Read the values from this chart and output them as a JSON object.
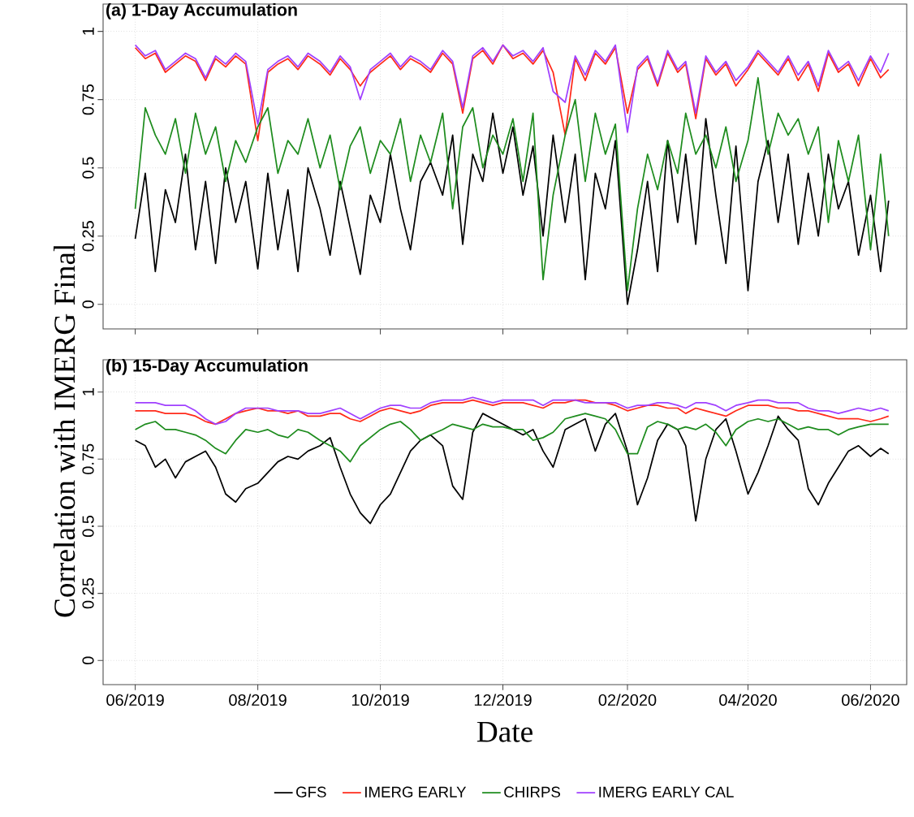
{
  "chart_data": [
    {
      "type": "line",
      "title": "(a) 1-Day Accumulation",
      "ylabel": "Correlation with IMERG Final",
      "x": [
        "2019-06-01",
        "2019-06-06",
        "2019-06-11",
        "2019-06-16",
        "2019-06-21",
        "2019-06-26",
        "2019-07-01",
        "2019-07-06",
        "2019-07-11",
        "2019-07-16",
        "2019-07-21",
        "2019-07-26",
        "2019-08-01",
        "2019-08-06",
        "2019-08-11",
        "2019-08-16",
        "2019-08-21",
        "2019-08-26",
        "2019-09-01",
        "2019-09-06",
        "2019-09-11",
        "2019-09-16",
        "2019-09-21",
        "2019-09-26",
        "2019-10-01",
        "2019-10-06",
        "2019-10-11",
        "2019-10-16",
        "2019-10-21",
        "2019-10-26",
        "2019-11-01",
        "2019-11-06",
        "2019-11-11",
        "2019-11-16",
        "2019-11-21",
        "2019-11-26",
        "2019-12-01",
        "2019-12-06",
        "2019-12-11",
        "2019-12-16",
        "2019-12-21",
        "2019-12-26",
        "2020-01-01",
        "2020-01-06",
        "2020-01-11",
        "2020-01-16",
        "2020-01-21",
        "2020-01-26",
        "2020-02-01",
        "2020-02-06",
        "2020-02-11",
        "2020-02-16",
        "2020-02-21",
        "2020-02-26",
        "2020-03-01",
        "2020-03-06",
        "2020-03-11",
        "2020-03-16",
        "2020-03-21",
        "2020-03-26",
        "2020-04-01",
        "2020-04-06",
        "2020-04-11",
        "2020-04-16",
        "2020-04-21",
        "2020-04-26",
        "2020-05-01",
        "2020-05-06",
        "2020-05-11",
        "2020-05-16",
        "2020-05-21",
        "2020-05-26",
        "2020-06-01",
        "2020-06-06",
        "2020-06-10"
      ],
      "xlim": [
        "2019-05-16",
        "2020-06-19"
      ],
      "xticks": [
        {
          "value": "2019-06-01",
          "label": null
        },
        {
          "value": "2019-08-01",
          "label": null
        },
        {
          "value": "2019-10-01",
          "label": null
        },
        {
          "value": "2019-12-01",
          "label": null
        },
        {
          "value": "2020-02-01",
          "label": null
        },
        {
          "value": "2020-04-01",
          "label": null
        },
        {
          "value": "2020-06-01",
          "label": null
        }
      ],
      "ylim": [
        -0.09,
        1.1
      ],
      "yticks": [
        0,
        0.25,
        0.5,
        0.75,
        1
      ],
      "grid": true,
      "tick_labels": "y",
      "series": [
        {
          "color": "#000000",
          "values": [
            0.24,
            0.48,
            0.12,
            0.42,
            0.3,
            0.55,
            0.2,
            0.45,
            0.15,
            0.5,
            0.3,
            0.45,
            0.13,
            0.48,
            0.2,
            0.42,
            0.12,
            0.5,
            0.35,
            0.18,
            0.45,
            0.28,
            0.11,
            0.4,
            0.3,
            0.55,
            0.35,
            0.2,
            0.45,
            0.52,
            0.4,
            0.62,
            0.22,
            0.55,
            0.45,
            0.7,
            0.48,
            0.65,
            0.4,
            0.58,
            0.25,
            0.62,
            0.3,
            0.55,
            0.09,
            0.48,
            0.35,
            0.6,
            0.0,
            0.2,
            0.45,
            0.12,
            0.6,
            0.3,
            0.55,
            0.22,
            0.68,
            0.4,
            0.15,
            0.58,
            0.05,
            0.45,
            0.6,
            0.3,
            0.55,
            0.22,
            0.48,
            0.25,
            0.55,
            0.35,
            0.45,
            0.18,
            0.4,
            0.12,
            0.38
          ]
        },
        {
          "color": "#ff2a1a",
          "values": [
            0.94,
            0.9,
            0.92,
            0.85,
            0.88,
            0.91,
            0.89,
            0.82,
            0.9,
            0.87,
            0.91,
            0.88,
            0.6,
            0.85,
            0.88,
            0.9,
            0.86,
            0.91,
            0.88,
            0.84,
            0.9,
            0.86,
            0.8,
            0.85,
            0.88,
            0.91,
            0.86,
            0.9,
            0.88,
            0.85,
            0.92,
            0.88,
            0.7,
            0.9,
            0.93,
            0.88,
            0.95,
            0.9,
            0.92,
            0.88,
            0.93,
            0.85,
            0.62,
            0.9,
            0.82,
            0.92,
            0.88,
            0.94,
            0.7,
            0.86,
            0.9,
            0.8,
            0.92,
            0.85,
            0.88,
            0.68,
            0.9,
            0.84,
            0.88,
            0.8,
            0.86,
            0.92,
            0.88,
            0.84,
            0.9,
            0.82,
            0.88,
            0.78,
            0.92,
            0.85,
            0.88,
            0.8,
            0.9,
            0.83,
            0.86
          ]
        },
        {
          "color": "#1e8c1e",
          "values": [
            0.35,
            0.72,
            0.62,
            0.55,
            0.68,
            0.48,
            0.7,
            0.55,
            0.65,
            0.45,
            0.6,
            0.52,
            0.65,
            0.72,
            0.48,
            0.6,
            0.55,
            0.68,
            0.5,
            0.62,
            0.42,
            0.58,
            0.65,
            0.48,
            0.6,
            0.55,
            0.68,
            0.45,
            0.62,
            0.52,
            0.7,
            0.35,
            0.65,
            0.72,
            0.5,
            0.62,
            0.55,
            0.68,
            0.45,
            0.7,
            0.09,
            0.4,
            0.62,
            0.75,
            0.45,
            0.7,
            0.55,
            0.66,
            0.05,
            0.35,
            0.55,
            0.42,
            0.6,
            0.48,
            0.7,
            0.55,
            0.62,
            0.5,
            0.65,
            0.45,
            0.6,
            0.83,
            0.55,
            0.7,
            0.62,
            0.68,
            0.55,
            0.65,
            0.3,
            0.6,
            0.45,
            0.62,
            0.2,
            0.55,
            0.25
          ]
        },
        {
          "color": "#a040ff",
          "values": [
            0.95,
            0.91,
            0.93,
            0.86,
            0.89,
            0.92,
            0.9,
            0.83,
            0.91,
            0.88,
            0.92,
            0.89,
            0.66,
            0.86,
            0.89,
            0.91,
            0.87,
            0.92,
            0.89,
            0.85,
            0.91,
            0.87,
            0.75,
            0.86,
            0.89,
            0.92,
            0.87,
            0.91,
            0.89,
            0.86,
            0.93,
            0.89,
            0.72,
            0.91,
            0.94,
            0.89,
            0.95,
            0.91,
            0.93,
            0.89,
            0.94,
            0.78,
            0.74,
            0.91,
            0.84,
            0.93,
            0.89,
            0.95,
            0.63,
            0.87,
            0.91,
            0.81,
            0.93,
            0.86,
            0.89,
            0.7,
            0.91,
            0.85,
            0.89,
            0.82,
            0.87,
            0.93,
            0.89,
            0.85,
            0.91,
            0.84,
            0.89,
            0.8,
            0.93,
            0.86,
            0.89,
            0.82,
            0.91,
            0.85,
            0.92
          ]
        }
      ]
    },
    {
      "type": "line",
      "title": "(b) 15-Day Accumulation",
      "xlabel": "Date",
      "x": [
        "2019-06-01",
        "2019-06-06",
        "2019-06-11",
        "2019-06-16",
        "2019-06-21",
        "2019-06-26",
        "2019-07-01",
        "2019-07-06",
        "2019-07-11",
        "2019-07-16",
        "2019-07-21",
        "2019-07-26",
        "2019-08-01",
        "2019-08-06",
        "2019-08-11",
        "2019-08-16",
        "2019-08-21",
        "2019-08-26",
        "2019-09-01",
        "2019-09-06",
        "2019-09-11",
        "2019-09-16",
        "2019-09-21",
        "2019-09-26",
        "2019-10-01",
        "2019-10-06",
        "2019-10-11",
        "2019-10-16",
        "2019-10-21",
        "2019-10-26",
        "2019-11-01",
        "2019-11-06",
        "2019-11-11",
        "2019-11-16",
        "2019-11-21",
        "2019-11-26",
        "2019-12-01",
        "2019-12-06",
        "2019-12-11",
        "2019-12-16",
        "2019-12-21",
        "2019-12-26",
        "2020-01-01",
        "2020-01-06",
        "2020-01-11",
        "2020-01-16",
        "2020-01-21",
        "2020-01-26",
        "2020-02-01",
        "2020-02-06",
        "2020-02-11",
        "2020-02-16",
        "2020-02-21",
        "2020-02-26",
        "2020-03-01",
        "2020-03-06",
        "2020-03-11",
        "2020-03-16",
        "2020-03-21",
        "2020-03-26",
        "2020-04-01",
        "2020-04-06",
        "2020-04-11",
        "2020-04-16",
        "2020-04-21",
        "2020-04-26",
        "2020-05-01",
        "2020-05-06",
        "2020-05-11",
        "2020-05-16",
        "2020-05-21",
        "2020-05-26",
        "2020-06-01",
        "2020-06-06",
        "2020-06-10"
      ],
      "xlim": [
        "2019-05-16",
        "2020-06-19"
      ],
      "xticks": [
        {
          "value": "2019-06-01",
          "label": "06/2019"
        },
        {
          "value": "2019-08-01",
          "label": "08/2019"
        },
        {
          "value": "2019-10-01",
          "label": "10/2019"
        },
        {
          "value": "2019-12-01",
          "label": "12/2019"
        },
        {
          "value": "2020-02-01",
          "label": "02/2020"
        },
        {
          "value": "2020-04-01",
          "label": "04/2020"
        },
        {
          "value": "2020-06-01",
          "label": "06/2020"
        }
      ],
      "ylim": [
        -0.09,
        1.12
      ],
      "yticks": [
        0,
        0.25,
        0.5,
        0.75,
        1
      ],
      "grid": true,
      "legend": "bottom",
      "series": [
        {
          "name": "GFS",
          "color": "#000000",
          "values": [
            0.82,
            0.8,
            0.72,
            0.75,
            0.68,
            0.74,
            0.76,
            0.78,
            0.72,
            0.62,
            0.59,
            0.64,
            0.66,
            0.7,
            0.74,
            0.76,
            0.75,
            0.78,
            0.8,
            0.83,
            0.72,
            0.62,
            0.55,
            0.51,
            0.58,
            0.62,
            0.7,
            0.78,
            0.82,
            0.84,
            0.8,
            0.65,
            0.6,
            0.85,
            0.92,
            0.9,
            0.88,
            0.86,
            0.84,
            0.86,
            0.78,
            0.72,
            0.86,
            0.88,
            0.9,
            0.78,
            0.88,
            0.92,
            0.78,
            0.58,
            0.68,
            0.82,
            0.88,
            0.86,
            0.8,
            0.52,
            0.75,
            0.86,
            0.9,
            0.78,
            0.62,
            0.7,
            0.8,
            0.91,
            0.86,
            0.82,
            0.64,
            0.58,
            0.66,
            0.72,
            0.78,
            0.8,
            0.76,
            0.79,
            0.77
          ]
        },
        {
          "name": "IMERG EARLY",
          "color": "#ff2a1a",
          "values": [
            0.93,
            0.93,
            0.93,
            0.92,
            0.92,
            0.92,
            0.91,
            0.89,
            0.88,
            0.9,
            0.92,
            0.93,
            0.94,
            0.93,
            0.93,
            0.92,
            0.93,
            0.91,
            0.91,
            0.92,
            0.92,
            0.9,
            0.89,
            0.91,
            0.93,
            0.94,
            0.93,
            0.92,
            0.93,
            0.95,
            0.96,
            0.96,
            0.96,
            0.97,
            0.96,
            0.95,
            0.96,
            0.96,
            0.96,
            0.95,
            0.94,
            0.96,
            0.96,
            0.97,
            0.97,
            0.96,
            0.96,
            0.95,
            0.93,
            0.94,
            0.95,
            0.95,
            0.94,
            0.94,
            0.92,
            0.94,
            0.93,
            0.92,
            0.91,
            0.93,
            0.95,
            0.95,
            0.95,
            0.94,
            0.94,
            0.93,
            0.93,
            0.92,
            0.91,
            0.9,
            0.9,
            0.9,
            0.89,
            0.9,
            0.91
          ]
        },
        {
          "name": "CHIRPS",
          "color": "#1e8c1e",
          "values": [
            0.86,
            0.88,
            0.89,
            0.86,
            0.86,
            0.85,
            0.84,
            0.82,
            0.79,
            0.77,
            0.82,
            0.86,
            0.85,
            0.86,
            0.84,
            0.83,
            0.86,
            0.85,
            0.82,
            0.8,
            0.78,
            0.74,
            0.8,
            0.83,
            0.86,
            0.88,
            0.89,
            0.86,
            0.82,
            0.84,
            0.86,
            0.88,
            0.87,
            0.86,
            0.88,
            0.87,
            0.87,
            0.86,
            0.86,
            0.82,
            0.83,
            0.85,
            0.9,
            0.91,
            0.92,
            0.91,
            0.9,
            0.86,
            0.77,
            0.77,
            0.87,
            0.89,
            0.88,
            0.86,
            0.87,
            0.86,
            0.88,
            0.85,
            0.8,
            0.86,
            0.89,
            0.9,
            0.89,
            0.9,
            0.88,
            0.86,
            0.87,
            0.86,
            0.86,
            0.84,
            0.86,
            0.87,
            0.88,
            0.88,
            0.88
          ]
        },
        {
          "name": "IMERG EARLY CAL",
          "color": "#a040ff",
          "values": [
            0.96,
            0.96,
            0.96,
            0.95,
            0.95,
            0.95,
            0.93,
            0.9,
            0.88,
            0.89,
            0.92,
            0.94,
            0.94,
            0.94,
            0.93,
            0.93,
            0.93,
            0.92,
            0.92,
            0.93,
            0.94,
            0.92,
            0.9,
            0.92,
            0.94,
            0.95,
            0.95,
            0.94,
            0.94,
            0.96,
            0.97,
            0.97,
            0.97,
            0.98,
            0.97,
            0.96,
            0.97,
            0.97,
            0.97,
            0.97,
            0.95,
            0.97,
            0.97,
            0.97,
            0.96,
            0.96,
            0.96,
            0.96,
            0.94,
            0.95,
            0.95,
            0.96,
            0.96,
            0.95,
            0.94,
            0.96,
            0.96,
            0.95,
            0.93,
            0.95,
            0.96,
            0.97,
            0.97,
            0.96,
            0.96,
            0.96,
            0.94,
            0.93,
            0.93,
            0.92,
            0.93,
            0.94,
            0.93,
            0.94,
            0.93
          ]
        }
      ]
    }
  ]
}
